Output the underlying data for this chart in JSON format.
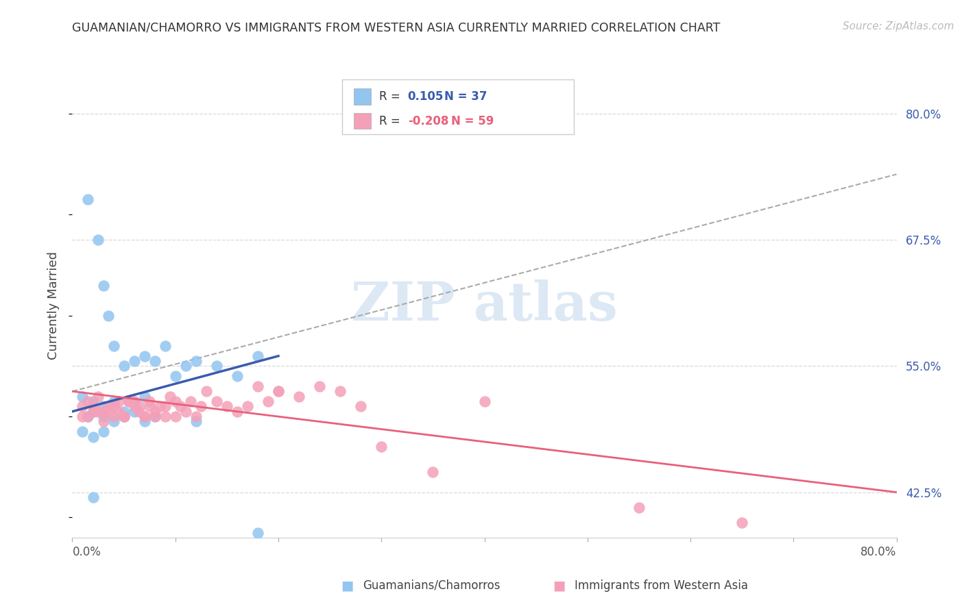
{
  "title": "GUAMANIAN/CHAMORRO VS IMMIGRANTS FROM WESTERN ASIA CURRENTLY MARRIED CORRELATION CHART",
  "source": "Source: ZipAtlas.com",
  "ylabel": "Currently Married",
  "legend_label_blue": "Guamanians/Chamorros",
  "legend_label_pink": "Immigrants from Western Asia",
  "R_blue": 0.105,
  "N_blue": 37,
  "R_pink": -0.208,
  "N_pink": 59,
  "xmin": 0.0,
  "xmax": 80.0,
  "ymin": 38.0,
  "ymax": 84.0,
  "yticks": [
    42.5,
    55.0,
    67.5,
    80.0
  ],
  "color_blue_fill": "#92C5F0",
  "color_pink_fill": "#F4A0B8",
  "color_blue_line": "#3A5BAE",
  "color_pink_line": "#E8607A",
  "color_gray_dash": "#AAAAAA",
  "background": "#FFFFFF",
  "grid_color": "#D8D8D8",
  "watermark_color": "#DDE8F5",
  "blue_x": [
    1.5,
    2.5,
    3.0,
    3.5,
    4.0,
    5.0,
    6.0,
    7.0,
    8.0,
    9.0,
    10.0,
    11.0,
    12.0,
    14.0,
    16.0,
    18.0,
    1.0,
    2.0,
    3.0,
    4.0,
    5.0,
    6.0,
    7.0,
    1.5,
    2.0,
    3.0,
    4.0,
    5.0,
    6.0,
    7.0,
    8.0,
    1.0,
    2.0,
    3.0,
    12.0,
    2.0,
    18.0
  ],
  "blue_y": [
    71.5,
    67.5,
    63.0,
    60.0,
    57.0,
    55.0,
    55.5,
    56.0,
    55.5,
    57.0,
    54.0,
    55.0,
    55.5,
    55.0,
    54.0,
    56.0,
    52.0,
    51.5,
    51.0,
    51.5,
    50.5,
    51.5,
    52.0,
    50.0,
    50.5,
    50.0,
    49.5,
    50.0,
    50.5,
    49.5,
    50.0,
    48.5,
    48.0,
    48.5,
    49.5,
    42.0,
    38.5
  ],
  "pink_x": [
    1.0,
    1.5,
    2.0,
    2.5,
    3.0,
    3.5,
    4.0,
    4.5,
    5.0,
    5.5,
    6.0,
    6.5,
    7.0,
    7.5,
    8.0,
    8.5,
    9.0,
    9.5,
    10.0,
    10.5,
    11.0,
    11.5,
    12.0,
    12.5,
    13.0,
    14.0,
    15.0,
    16.0,
    17.0,
    18.0,
    19.0,
    20.0,
    22.0,
    24.0,
    26.0,
    28.0,
    30.0,
    35.0,
    40.0,
    55.0,
    65.0,
    1.0,
    2.0,
    3.0,
    4.0,
    5.0,
    6.0,
    7.0,
    8.0,
    1.5,
    2.5,
    3.5,
    4.5,
    5.5,
    6.5,
    7.5,
    9.0,
    10.0,
    20.0
  ],
  "pink_y": [
    51.0,
    51.5,
    51.0,
    52.0,
    50.5,
    51.0,
    50.0,
    50.5,
    50.0,
    51.5,
    51.5,
    51.0,
    50.0,
    51.0,
    50.5,
    51.0,
    50.0,
    52.0,
    51.5,
    51.0,
    50.5,
    51.5,
    50.0,
    51.0,
    52.5,
    51.5,
    51.0,
    50.5,
    51.0,
    53.0,
    51.5,
    52.5,
    52.0,
    53.0,
    52.5,
    51.0,
    47.0,
    44.5,
    51.5,
    41.0,
    39.5,
    50.0,
    50.5,
    49.5,
    51.0,
    50.0,
    51.0,
    50.0,
    50.0,
    50.0,
    50.5,
    50.5,
    51.5,
    51.5,
    50.5,
    51.5,
    51.0,
    50.0,
    52.5
  ],
  "blue_line_x0": 0.0,
  "blue_line_y0": 50.5,
  "blue_line_x1": 20.0,
  "blue_line_y1": 56.0,
  "pink_line_x0": 0.0,
  "pink_line_y0": 52.5,
  "pink_line_x1": 80.0,
  "pink_line_y1": 42.5,
  "gray_line_x0": 0.0,
  "gray_line_y0": 52.5,
  "gray_line_x1": 80.0,
  "gray_line_y1": 74.0
}
